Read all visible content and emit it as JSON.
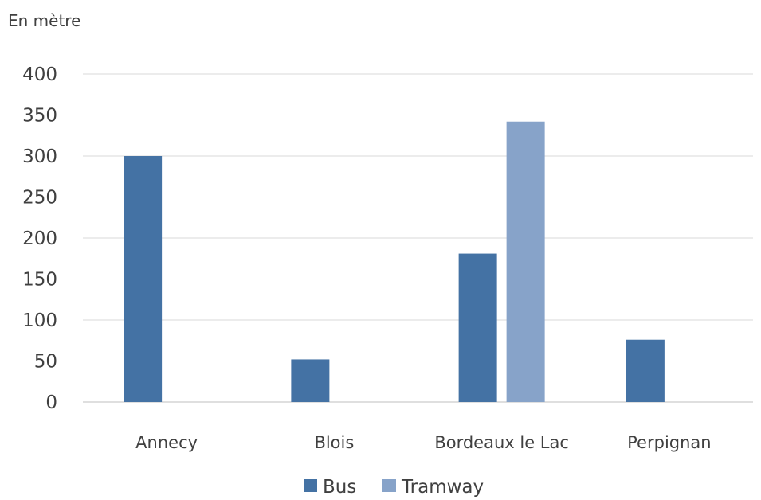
{
  "chart_data": {
    "type": "bar",
    "unit_label": "En mètre",
    "categories": [
      "Annecy",
      "Blois",
      "Bordeaux le Lac",
      "Perpignan"
    ],
    "series": [
      {
        "name": "Bus",
        "values": [
          300,
          52,
          181,
          76
        ],
        "color": "#4472a4"
      },
      {
        "name": "Tramway",
        "values": [
          null,
          null,
          342,
          null
        ],
        "color": "#87a3c9"
      }
    ],
    "yticks": [
      0,
      50,
      100,
      150,
      200,
      250,
      300,
      350,
      400
    ],
    "ylim": [
      0,
      400
    ],
    "grid": true,
    "legend_position": "bottom"
  }
}
